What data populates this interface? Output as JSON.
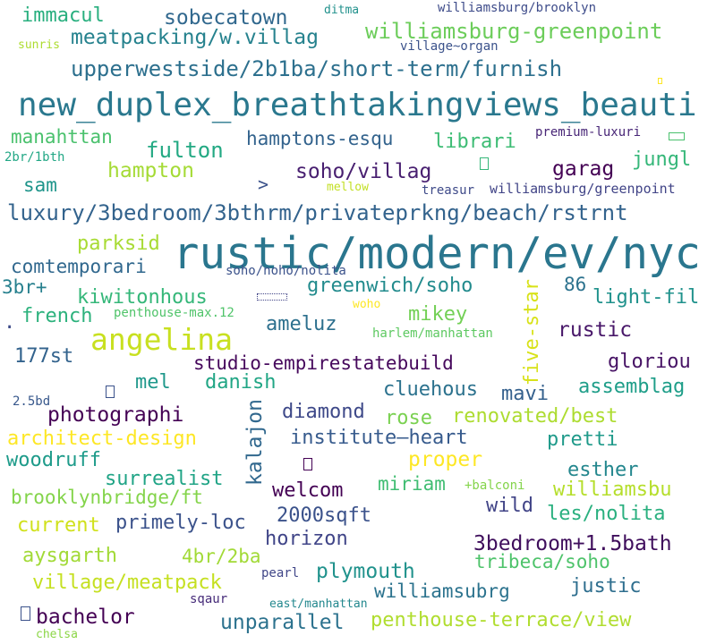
{
  "words": [
    {
      "text": "rustic/modern/ev/nyc",
      "color": "#2a768e"
    },
    {
      "text": "new_duplex_breathtakingviews_beauti",
      "color": "#2a788e"
    },
    {
      "text": "angelina",
      "color": "#c8e020"
    },
    {
      "text": "luxury/3bedroom/3bthrm/privateprkng/beach/rstrnt",
      "color": "#33638d"
    },
    {
      "text": "upperwestside/2b1ba/short-term/furnish",
      "color": "#2d708e"
    },
    {
      "text": "meatpacking/w.villag",
      "color": "#26828e"
    },
    {
      "text": "williamsburg-greenpoint",
      "color": "#6ccd5a"
    },
    {
      "text": "sobecatown",
      "color": "#31688e"
    },
    {
      "text": "immacul",
      "color": "#29af7f"
    },
    {
      "text": "williamsburg/brooklyn",
      "color": "#3e4c8a"
    },
    {
      "text": "ditma",
      "color": "#21918c"
    },
    {
      "text": "village~organ",
      "color": "#3b528b"
    },
    {
      "text": "sunris",
      "color": "#addc30"
    },
    {
      "text": "librari",
      "color": "#3dbc74"
    },
    {
      "text": "hamptons-esqu",
      "color": "#33638d"
    },
    {
      "text": "fulton",
      "color": "#23a983"
    },
    {
      "text": "manahttan",
      "color": "#4ac16d"
    },
    {
      "text": "premium-luxuri",
      "color": "#482677"
    },
    {
      "text": "jungl",
      "color": "#35b779"
    },
    {
      "text": "hampton",
      "color": "#a5db36"
    },
    {
      "text": "soho/villag",
      "color": "#481f70"
    },
    {
      "text": "garag",
      "color": "#440154"
    },
    {
      "text": "2br/1bth",
      "color": "#22a785"
    },
    {
      "text": "sam",
      "color": "#1f958b"
    },
    {
      "text": "mellow",
      "color": "#c2df23"
    },
    {
      "text": "treasur",
      "color": "#3e4a89"
    },
    {
      "text": "williamsburg/greenpoint",
      "color": "#414487"
    },
    {
      "text": "parksid",
      "color": "#a8db34"
    },
    {
      "text": "comtemporari",
      "color": "#31688e"
    },
    {
      "text": "soho/noho/nolita",
      "color": "#3b528b"
    },
    {
      "text": "3br+",
      "color": "#27808e"
    },
    {
      "text": "kiwitonhous",
      "color": "#35b779"
    },
    {
      "text": "greenwich/soho",
      "color": "#228b8d"
    },
    {
      "text": "86",
      "color": "#2c728e"
    },
    {
      "text": "light-fil",
      "color": "#20928c"
    },
    {
      "text": "french",
      "color": "#2db27d"
    },
    {
      "text": "penthouse-max.12",
      "color": "#50c46a"
    },
    {
      "text": "woho",
      "color": "#fde725"
    },
    {
      "text": "ameluz",
      "color": "#2d708e"
    },
    {
      "text": "mikey",
      "color": "#73d056"
    },
    {
      "text": "harlem/manhattan",
      "color": "#5ec962"
    },
    {
      "text": "rustic",
      "color": "#481769"
    },
    {
      "text": "177st",
      "color": "#33638d"
    },
    {
      "text": "studio-empirestatebuild",
      "color": "#46085c"
    },
    {
      "text": "gloriou",
      "color": "#471365"
    },
    {
      "text": "mel",
      "color": "#1f988b"
    },
    {
      "text": "danish",
      "color": "#21a685"
    },
    {
      "text": "cluehous",
      "color": "#2c728e"
    },
    {
      "text": "mavi",
      "color": "#34608d"
    },
    {
      "text": "assemblag",
      "color": "#1f9e89"
    },
    {
      "text": "2.5bd",
      "color": "#38588c"
    },
    {
      "text": "photographi",
      "color": "#440154"
    },
    {
      "text": "diamond",
      "color": "#3e4989"
    },
    {
      "text": "rose",
      "color": "#7ad151"
    },
    {
      "text": "renovated/best",
      "color": "#addc30"
    },
    {
      "text": "architect-design",
      "color": "#fde725"
    },
    {
      "text": "institute–heart",
      "color": "#375b8d"
    },
    {
      "text": "pretti",
      "color": "#1f9a8a"
    },
    {
      "text": "woodruff",
      "color": "#1e9b8a"
    },
    {
      "text": "proper",
      "color": "#fde725"
    },
    {
      "text": "surrealist",
      "color": "#20a486"
    },
    {
      "text": "esther",
      "color": "#24878e"
    },
    {
      "text": "welcom",
      "color": "#440154"
    },
    {
      "text": "miriam",
      "color": "#40bd72"
    },
    {
      "text": "+balconi",
      "color": "#84d44b"
    },
    {
      "text": "williamsbu",
      "color": "#b5de2b"
    },
    {
      "text": "brooklynbridge/ft",
      "color": "#84d44b"
    },
    {
      "text": "2000sqft",
      "color": "#3b528b"
    },
    {
      "text": "wild",
      "color": "#414487"
    },
    {
      "text": "current",
      "color": "#d0e11c"
    },
    {
      "text": "primely-loc",
      "color": "#3b528b"
    },
    {
      "text": "les/nolita",
      "color": "#2ab07f"
    },
    {
      "text": "horizon",
      "color": "#404588"
    },
    {
      "text": "3bedroom+1.5bath",
      "color": "#3f0e5c"
    },
    {
      "text": "aysgarth",
      "color": "#a2da37"
    },
    {
      "text": "4br/2ba",
      "color": "#a2da37"
    },
    {
      "text": "tribeca/soho",
      "color": "#4ec36b"
    },
    {
      "text": "plymouth",
      "color": "#20928c"
    },
    {
      "text": "village/meatpack",
      "color": "#c5e021"
    },
    {
      "text": "pearl",
      "color": "#404688"
    },
    {
      "text": "justic",
      "color": "#2e6e8e"
    },
    {
      "text": "williamsubrg",
      "color": "#2c738e"
    },
    {
      "text": "sqaur",
      "color": "#472c7a"
    },
    {
      "text": "bachelor",
      "color": "#440154"
    },
    {
      "text": "unparallel",
      "color": "#2c728e"
    },
    {
      "text": "penthouse-terrace/view",
      "color": "#b0dd2f"
    },
    {
      "text": "east/manhattan",
      "color": "#23888e"
    },
    {
      "text": "chelsa",
      "color": "#8bd646"
    },
    {
      "text": "kalajon",
      "color": "#31688e"
    },
    {
      "text": "five-star",
      "color": "#d8e219"
    },
    {
      "text": ">",
      "color": "#3b528b"
    },
    {
      "text": "·",
      "color": "#3e4c8a"
    }
  ]
}
